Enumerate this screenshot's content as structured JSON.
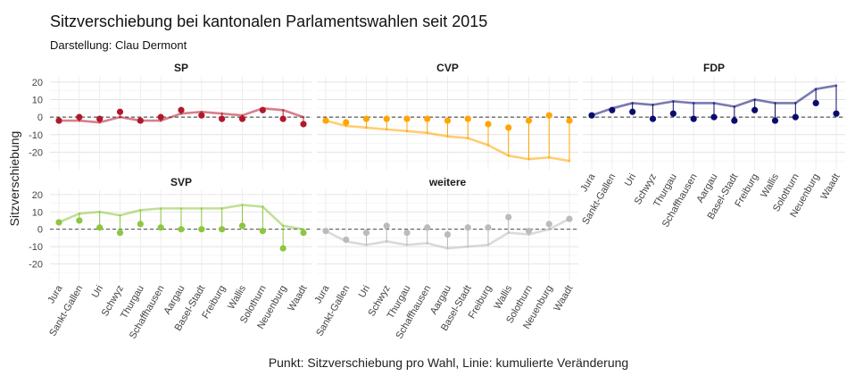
{
  "title": "Sitzverschiebung bei kantonalen Parlamentswahlen seit 2015",
  "subtitle": "Darstellung: Clau Dermont",
  "caption": "Punkt: Sitzverschiebung pro Wahl, Linie: kumulierte Veränderung",
  "chart_data": {
    "type": "scatter",
    "ylabel": "Sitzverschiebung",
    "xlabel": "",
    "ylim": [
      -30,
      23
    ],
    "yticks": [
      20,
      10,
      0,
      -10,
      -20
    ],
    "grid": true,
    "categories": [
      "Jura",
      "Sankt-Gallen",
      "Uri",
      "Schwyz",
      "Thurgau",
      "Schaffhausen",
      "Aargau",
      "Basel-Stadt",
      "Freiburg",
      "Wallis",
      "Solothurn",
      "Neuenburg",
      "Waadt"
    ],
    "series": [
      {
        "name": "SP",
        "color": "#b2182b",
        "points": [
          -2,
          0,
          -1,
          3,
          -2,
          0,
          4,
          1,
          -1,
          -1,
          4,
          -1,
          -4
        ],
        "cumulative": [
          -2,
          -2,
          -3,
          0,
          -2,
          -2,
          2,
          3,
          2,
          1,
          5,
          4,
          0
        ]
      },
      {
        "name": "CVP",
        "color": "#ffa500",
        "points": [
          -2,
          -3,
          -1,
          -1,
          -1,
          -1,
          -2,
          -1,
          -4,
          -6,
          -2,
          1,
          -2
        ],
        "cumulative": [
          -2,
          -5,
          -6,
          -7,
          -8,
          -9,
          -11,
          -12,
          -16,
          -22,
          -24,
          -23,
          -25
        ]
      },
      {
        "name": "FDP",
        "color": "#0b0b6e",
        "points": [
          1,
          4,
          3,
          -1,
          2,
          -1,
          0,
          -2,
          4,
          -2,
          0,
          8,
          2
        ],
        "cumulative": [
          1,
          5,
          8,
          7,
          9,
          8,
          8,
          6,
          10,
          8,
          8,
          16,
          18
        ]
      },
      {
        "name": "SVP",
        "color": "#8dc63f",
        "points": [
          4,
          5,
          1,
          -2,
          3,
          1,
          0,
          0,
          0,
          2,
          -1,
          -11,
          -2
        ],
        "cumulative": [
          4,
          9,
          10,
          8,
          11,
          12,
          12,
          12,
          12,
          14,
          13,
          2,
          0
        ]
      },
      {
        "name": "weitere",
        "color": "#bbbbbb",
        "points": [
          -1,
          -6,
          -2,
          2,
          -2,
          1,
          -3,
          1,
          1,
          7,
          -1,
          3,
          6
        ],
        "cumulative": [
          -1,
          -7,
          -9,
          -7,
          -9,
          -8,
          -11,
          -10,
          -9,
          -2,
          -3,
          0,
          6
        ]
      }
    ]
  }
}
